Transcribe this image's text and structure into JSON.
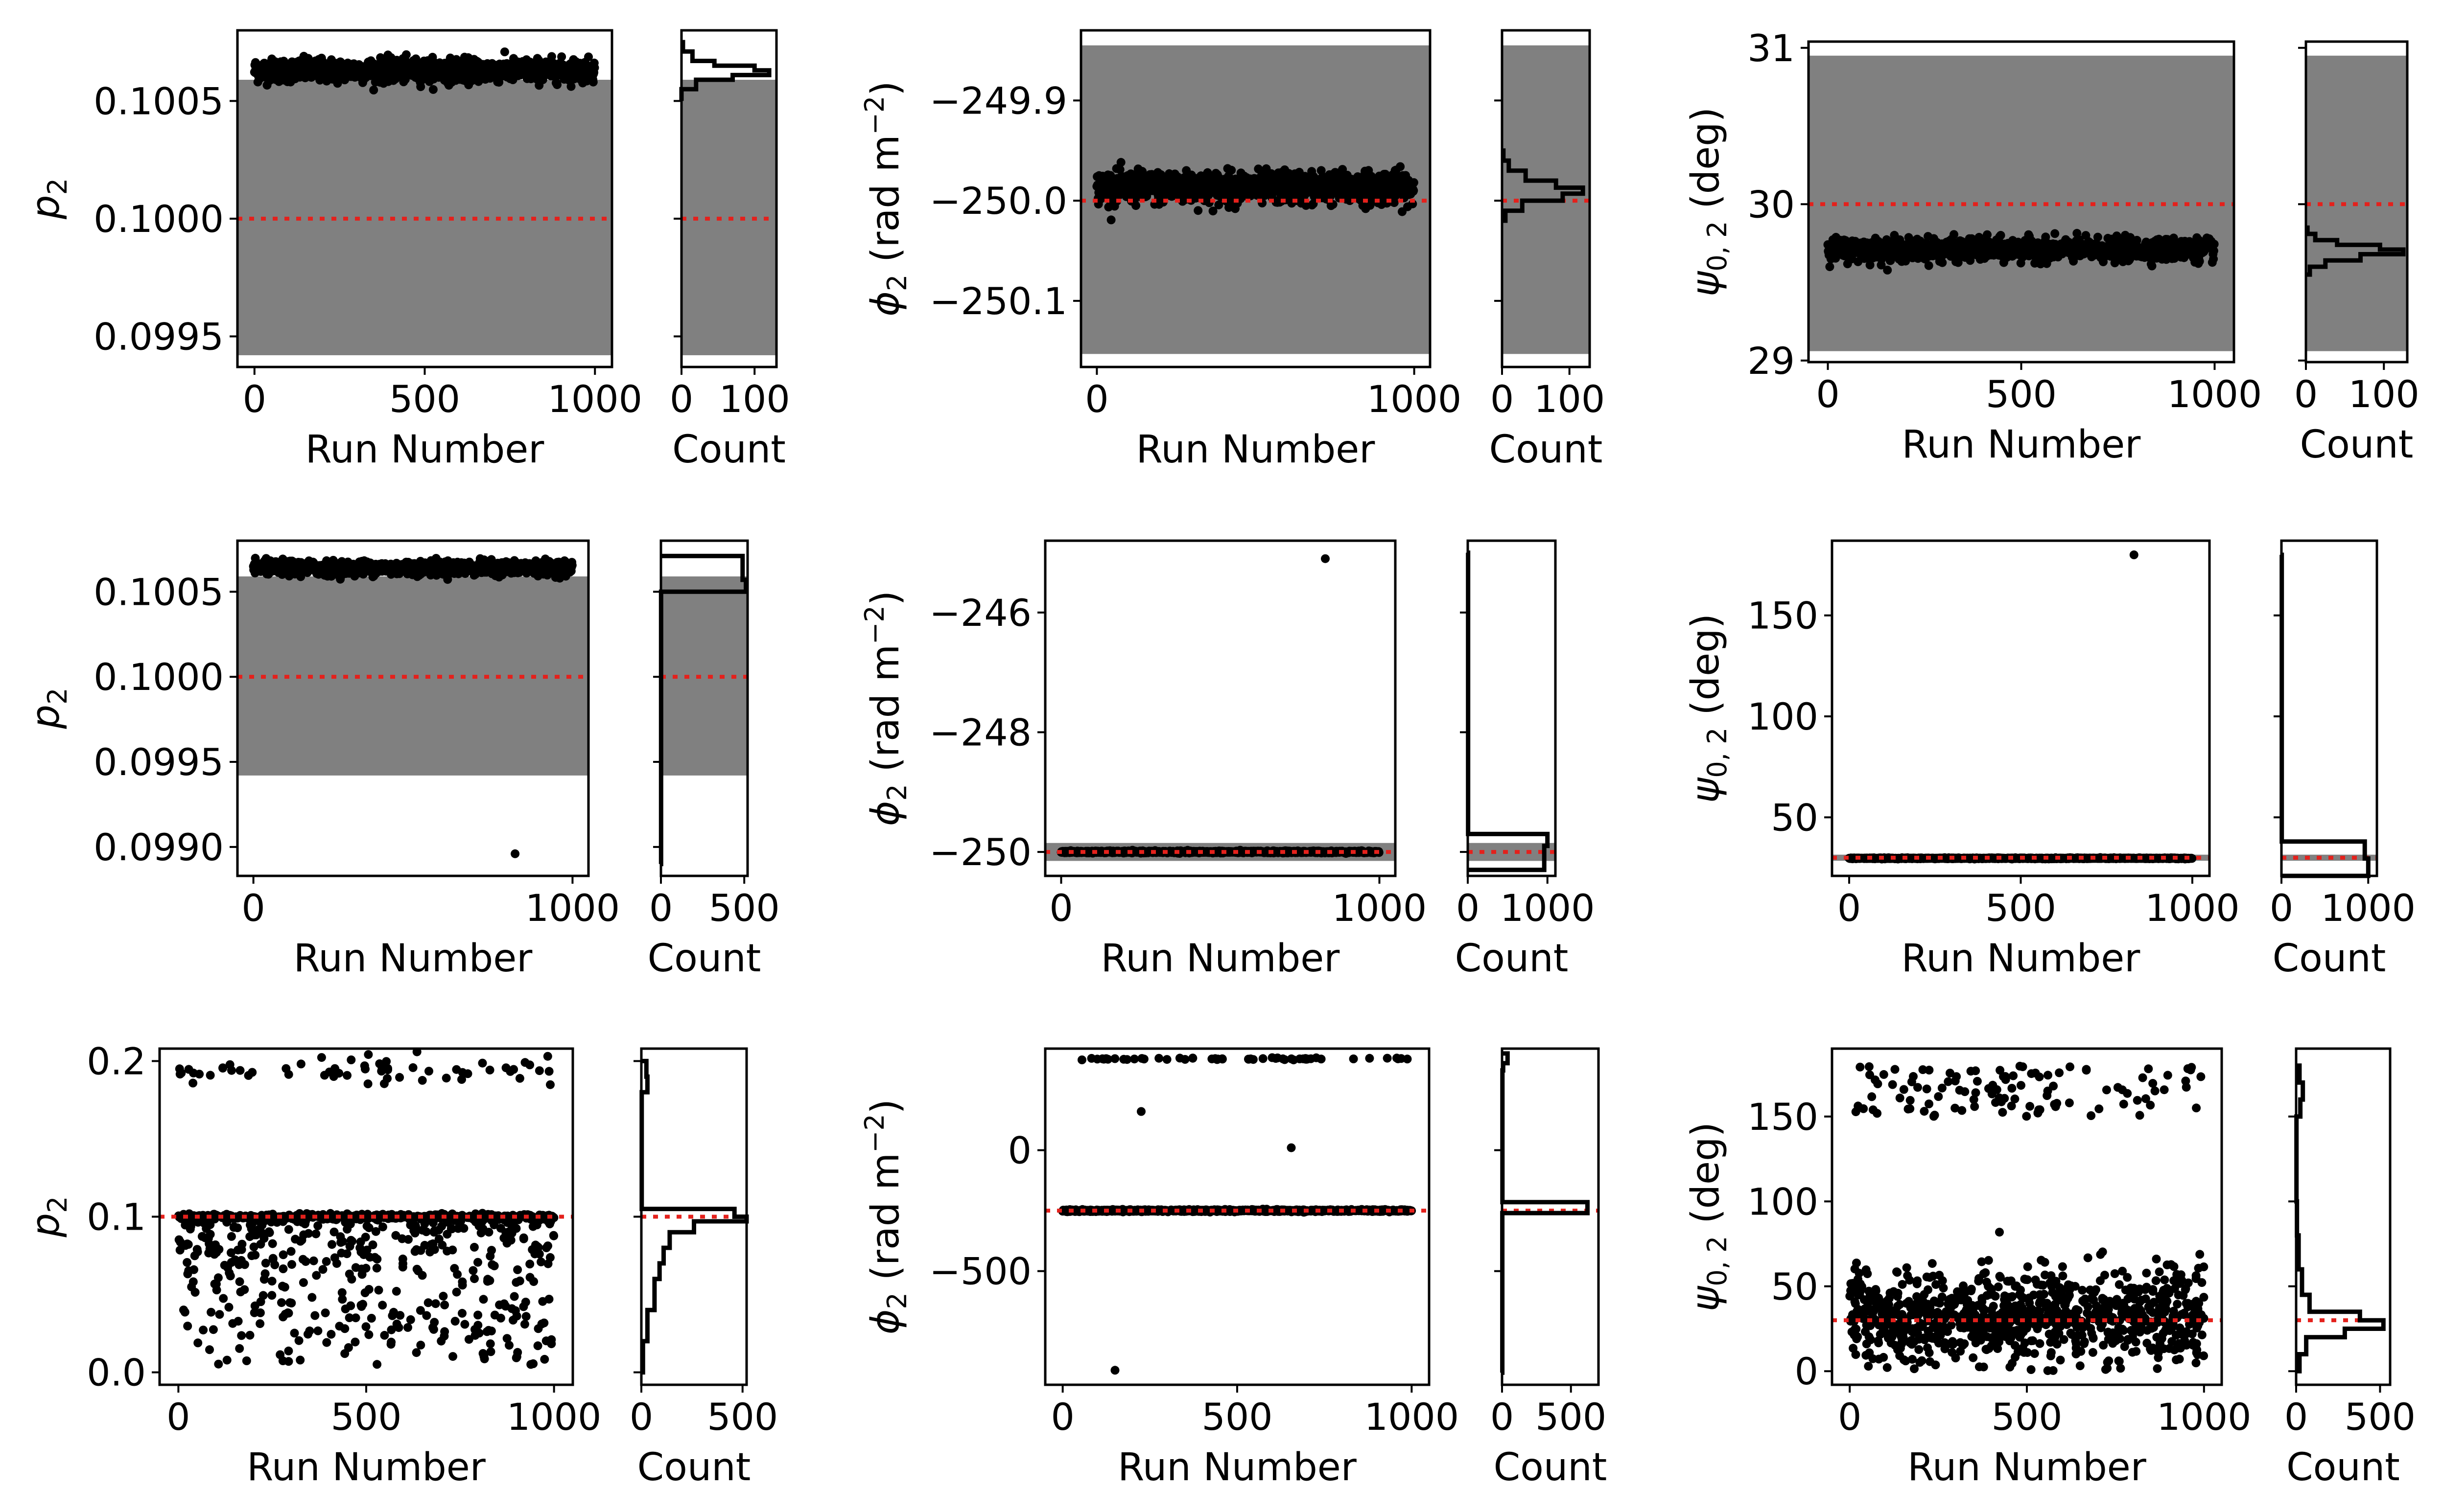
{
  "figure": {
    "description_labels": {
      "run_xlabel": "Run Number",
      "count_xlabel": "Count"
    }
  },
  "colors": {
    "points": "#000000",
    "band": "#808080",
    "reference": "#e4211c",
    "histogram": "#000000"
  },
  "chart_data": [
    {
      "type": "scatter",
      "row": 0,
      "col": 0,
      "ylabel": "p_2",
      "xlabel": "Run Number",
      "xlim": [
        -50,
        1050
      ],
      "ylim": [
        0.09937,
        0.1008
      ],
      "xticks": [
        0,
        500,
        1000
      ],
      "xtick_labels": [
        "0",
        "500",
        "1000"
      ],
      "yticks": [
        0.0995,
        0.1,
        0.1005
      ],
      "ytick_labels": [
        "0.0995",
        "0.1000",
        "0.1005"
      ],
      "band": [
        0.09942,
        0.10059
      ],
      "reference": 0.1,
      "cluster": {
        "center": 0.10063,
        "spread": 2.4e-05,
        "count": 1000
      },
      "outliers": [],
      "hist_xlabel": "Count",
      "hist_xlim": [
        0,
        130
      ],
      "hist_xticks": [
        0,
        100
      ],
      "hist_xtick_labels": [
        "0",
        "100"
      ],
      "hist_edges": [
        0.1005,
        0.10055,
        0.10059,
        0.10061,
        0.10063,
        0.10065,
        0.10067,
        0.10071,
        0.10075
      ],
      "hist_counts": [
        0,
        20,
        70,
        120,
        100,
        45,
        15,
        2
      ]
    },
    {
      "type": "scatter",
      "row": 0,
      "col": 1,
      "ylabel": "phi_2 (rad m^-2)",
      "xlabel": "Run Number",
      "xlim": [
        -50,
        1050
      ],
      "ylim": [
        -250.166,
        -249.83
      ],
      "xticks": [
        0,
        1000
      ],
      "xtick_labels": [
        "0",
        "1000"
      ],
      "yticks": [
        -249.9,
        -250,
        -250.1
      ],
      "ytick_labels": [
        "−249.9",
        "−250.0",
        "−250.1"
      ],
      "band": [
        -250.153,
        -249.845
      ],
      "reference": -250,
      "cluster": {
        "center": -249.987,
        "spread": 0.008,
        "count": 1000
      },
      "outliers": [],
      "hist_xlabel": "Count",
      "hist_xlim": [
        0,
        130
      ],
      "hist_xticks": [
        0,
        100
      ],
      "hist_xtick_labels": [
        "0",
        "100"
      ],
      "hist_edges": [
        -250.02,
        -250.01,
        -250.0,
        -249.993,
        -249.987,
        -249.98,
        -249.97,
        -249.96,
        -249.95
      ],
      "hist_counts": [
        5,
        30,
        90,
        120,
        80,
        35,
        10,
        2
      ]
    },
    {
      "type": "scatter",
      "row": 0,
      "col": 2,
      "ylabel": "psi_0,2 (deg)",
      "xlabel": "Run Number",
      "xlim": [
        -50,
        1050
      ],
      "ylim": [
        28.99,
        31.04
      ],
      "xticks": [
        0,
        500,
        1000
      ],
      "xtick_labels": [
        "0",
        "500",
        "1000"
      ],
      "yticks": [
        29,
        30,
        31
      ],
      "ytick_labels": [
        "29",
        "30",
        "31"
      ],
      "band": [
        29.06,
        30.95
      ],
      "reference": 30,
      "cluster": {
        "center": 29.71,
        "spread": 0.035,
        "count": 1000
      },
      "outliers": [],
      "hist_xlabel": "Count",
      "hist_xlim": [
        0,
        130
      ],
      "hist_xticks": [
        0,
        100
      ],
      "hist_xtick_labels": [
        "0",
        "100"
      ],
      "hist_edges": [
        29.55,
        29.6,
        29.64,
        29.68,
        29.71,
        29.74,
        29.77,
        29.81,
        29.85
      ],
      "hist_counts": [
        5,
        25,
        70,
        125,
        95,
        40,
        12,
        2
      ]
    },
    {
      "type": "scatter",
      "row": 1,
      "col": 0,
      "ylabel": "p_2",
      "xlabel": "Run Number",
      "xlim": [
        -50,
        1050
      ],
      "ylim": [
        0.09883,
        0.1008
      ],
      "xticks": [
        0,
        1000
      ],
      "xtick_labels": [
        "0",
        "1000"
      ],
      "yticks": [
        0.099,
        0.0995,
        0.1,
        0.1005
      ],
      "ytick_labels": [
        "0.0990",
        "0.0995",
        "0.1000",
        "0.1005"
      ],
      "band": [
        0.09942,
        0.10059
      ],
      "reference": 0.1,
      "cluster": {
        "center": 0.10064,
        "spread": 2e-05,
        "count": 999
      },
      "outliers": [
        {
          "x": 820,
          "y": 0.09896
        }
      ],
      "hist_xlabel": "Count",
      "hist_xlim": [
        0,
        520
      ],
      "hist_xticks": [
        0,
        500
      ],
      "hist_xtick_labels": [
        "0",
        "500"
      ],
      "hist_edges": [
        0.0989,
        0.1005,
        0.10057,
        0.10071
      ],
      "hist_counts": [
        1,
        510,
        490
      ]
    },
    {
      "type": "scatter",
      "row": 1,
      "col": 1,
      "ylabel": "phi_2 (rad m^-2)",
      "xlabel": "Run Number",
      "xlim": [
        -50,
        1050
      ],
      "ylim": [
        -250.4,
        -244.8
      ],
      "xticks": [
        0,
        1000
      ],
      "xtick_labels": [
        "0",
        "1000"
      ],
      "yticks": [
        -246,
        -248,
        -250
      ],
      "ytick_labels": [
        "−246",
        "−248",
        "−250"
      ],
      "band": [
        -250.15,
        -249.85
      ],
      "reference": -250,
      "cluster": {
        "center": -250.0,
        "spread": 0.008,
        "count": 999
      },
      "outliers": [
        {
          "x": 830,
          "y": -245.1
        }
      ],
      "hist_xlabel": "Count",
      "hist_xlim": [
        0,
        1100
      ],
      "hist_xticks": [
        0,
        1000
      ],
      "hist_xtick_labels": [
        "0",
        "1000"
      ],
      "hist_edges": [
        -250.3,
        -249.9,
        -249.7,
        -245.0
      ],
      "hist_counts": [
        960,
        1000,
        4
      ]
    },
    {
      "type": "scatter",
      "row": 1,
      "col": 2,
      "ylabel": "psi_0,2 (deg)",
      "xlabel": "Run Number",
      "xlim": [
        -50,
        1050
      ],
      "ylim": [
        21,
        187
      ],
      "xticks": [
        0,
        500,
        1000
      ],
      "xtick_labels": [
        "0",
        "500",
        "1000"
      ],
      "yticks": [
        50,
        100,
        150
      ],
      "ytick_labels": [
        "50",
        "100",
        "150"
      ],
      "band": [
        28.5,
        31.5
      ],
      "reference": 30,
      "cluster": {
        "center": 29.7,
        "spread": 0.12,
        "count": 999
      },
      "outliers": [
        {
          "x": 830,
          "y": 180
        }
      ],
      "hist_xlabel": "Count",
      "hist_xlim": [
        0,
        1100
      ],
      "hist_xticks": [
        0,
        1000
      ],
      "hist_xtick_labels": [
        "0",
        "1000"
      ],
      "hist_edges": [
        21,
        29.6,
        38,
        180
      ],
      "hist_counts": [
        1000,
        960,
        4
      ]
    },
    {
      "type": "scatter",
      "row": 2,
      "col": 0,
      "ylabel": "p_2",
      "xlabel": "Run Number",
      "xlim": [
        -50,
        1050
      ],
      "ylim": [
        -0.008,
        0.208
      ],
      "xticks": [
        0,
        500,
        1000
      ],
      "xtick_labels": [
        "0",
        "500",
        "1000"
      ],
      "yticks": [
        0.0,
        0.1,
        0.2
      ],
      "ytick_labels": [
        "0.0",
        "0.1",
        "0.2"
      ],
      "band": null,
      "reference": 0.1,
      "upper_group": {
        "center": 0.194,
        "spread": 0.004,
        "count": 60
      },
      "line_group": {
        "center": 0.1,
        "spread": 0.0008,
        "count": 450
      },
      "spread_group": {
        "min": 0.005,
        "max": 0.1,
        "count": 490
      },
      "hist_xlabel": "Count",
      "hist_xlim": [
        0,
        520
      ],
      "hist_xticks": [
        0,
        500
      ],
      "hist_xtick_labels": [
        "0",
        "500"
      ],
      "hist_edges": [
        0.0,
        0.02,
        0.04,
        0.06,
        0.07,
        0.08,
        0.09,
        0.097,
        0.1,
        0.105,
        0.18,
        0.19,
        0.2
      ],
      "hist_counts": [
        8,
        30,
        65,
        90,
        110,
        140,
        260,
        520,
        460,
        2,
        30,
        25
      ]
    },
    {
      "type": "scatter",
      "row": 2,
      "col": 1,
      "ylabel": "phi_2 (rad m^-2)",
      "xlabel": "Run Number",
      "xlim": [
        -50,
        1050
      ],
      "ylim": [
        -970,
        420
      ],
      "xticks": [
        0,
        500,
        1000
      ],
      "xtick_labels": [
        "0",
        "500",
        "1000"
      ],
      "yticks": [
        0,
        -500
      ],
      "ytick_labels": [
        "0",
        "−500"
      ],
      "band": null,
      "reference": -250,
      "upper_group": {
        "center": 378,
        "spread": 2,
        "count": 55
      },
      "line_group": {
        "center": -250,
        "spread": 2,
        "count": 940
      },
      "outliers": [
        {
          "x": 225,
          "y": 160
        },
        {
          "x": 655,
          "y": 10
        },
        {
          "x": 150,
          "y": -910
        }
      ],
      "hist_xlabel": "Count",
      "hist_xlim": [
        0,
        700
      ],
      "hist_xticks": [
        0,
        500
      ],
      "hist_xtick_labels": [
        "0",
        "500"
      ],
      "hist_edges": [
        -920,
        -260,
        -215,
        330,
        360,
        400
      ],
      "hist_counts": [
        2,
        620,
        3,
        8,
        40
      ]
    },
    {
      "type": "scatter",
      "row": 2,
      "col": 2,
      "ylabel": "psi_0,2 (deg)",
      "xlabel": "Run Number",
      "xlim": [
        -50,
        1050
      ],
      "ylim": [
        -8,
        190
      ],
      "xticks": [
        0,
        500,
        1000
      ],
      "xtick_labels": [
        "0",
        "500",
        "1000"
      ],
      "yticks": [
        0,
        50,
        100,
        150
      ],
      "ytick_labels": [
        "0",
        "50",
        "100",
        "150"
      ],
      "band": null,
      "reference": 30,
      "upper_group": {
        "min": 150,
        "max": 180,
        "count": 110
      },
      "spread_group": {
        "center": 32,
        "spread": 14,
        "count": 890
      },
      "hist_xlabel": "Count",
      "hist_xlim": [
        0,
        560
      ],
      "hist_xticks": [
        0,
        500
      ],
      "hist_xtick_labels": [
        "0",
        "500"
      ],
      "hist_edges": [
        0,
        10,
        20,
        25,
        30,
        35,
        45,
        60,
        80,
        100,
        150,
        160,
        170,
        180
      ],
      "hist_counts": [
        20,
        60,
        290,
        520,
        380,
        80,
        35,
        15,
        5,
        2,
        25,
        40,
        20
      ]
    }
  ]
}
